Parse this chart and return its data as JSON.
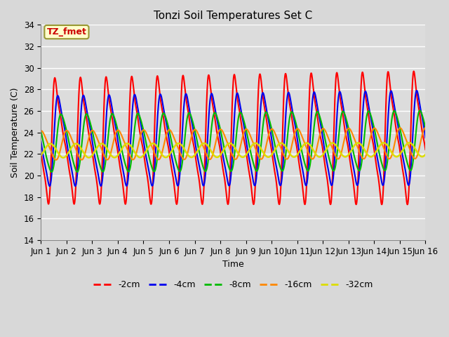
{
  "title": "Tonzi Soil Temperatures Set C",
  "xlabel": "Time",
  "ylabel": "Soil Temperature (C)",
  "ylim": [
    14,
    34
  ],
  "n_days": 15,
  "annotation_text": "TZ_fmet",
  "bg_color": "#dcdcdc",
  "grid_color": "#ffffff",
  "xtick_labels": [
    "Jun 1",
    "Jun 2",
    "Jun 3",
    "Jun 4",
    "Jun 5",
    "Jun 6",
    "Jun 7",
    "Jun 8",
    "Jun 9",
    "Jun 10",
    "Jun 11",
    "Jun 12",
    "Jun 13",
    "Jun 14",
    "Jun 15",
    "Jun 16"
  ],
  "series": [
    {
      "label": "-2cm",
      "color": "#ff0000",
      "amplitude": 7.8,
      "mean": 23.2,
      "phase": 0.0,
      "lag": 0.0,
      "lw": 1.5
    },
    {
      "label": "-4cm",
      "color": "#0000ee",
      "amplitude": 5.2,
      "mean": 23.2,
      "phase": 0.0,
      "lag": 0.08,
      "lw": 1.5
    },
    {
      "label": "-8cm",
      "color": "#00bb00",
      "amplitude": 3.2,
      "mean": 23.0,
      "phase": 0.0,
      "lag": 0.18,
      "lw": 1.5
    },
    {
      "label": "-16cm",
      "color": "#ff8800",
      "amplitude": 1.5,
      "mean": 22.8,
      "phase": 0.0,
      "lag": 0.38,
      "lw": 1.5
    },
    {
      "label": "-32cm",
      "color": "#dddd00",
      "amplitude": 0.65,
      "mean": 22.3,
      "phase": 0.0,
      "lag": 0.7,
      "lw": 1.8
    }
  ],
  "legend_colors": [
    "#ff0000",
    "#0000ee",
    "#00bb00",
    "#ff8800",
    "#dddd00"
  ],
  "legend_labels": [
    "-2cm",
    "-4cm",
    "-8cm",
    "-16cm",
    "-32cm"
  ]
}
